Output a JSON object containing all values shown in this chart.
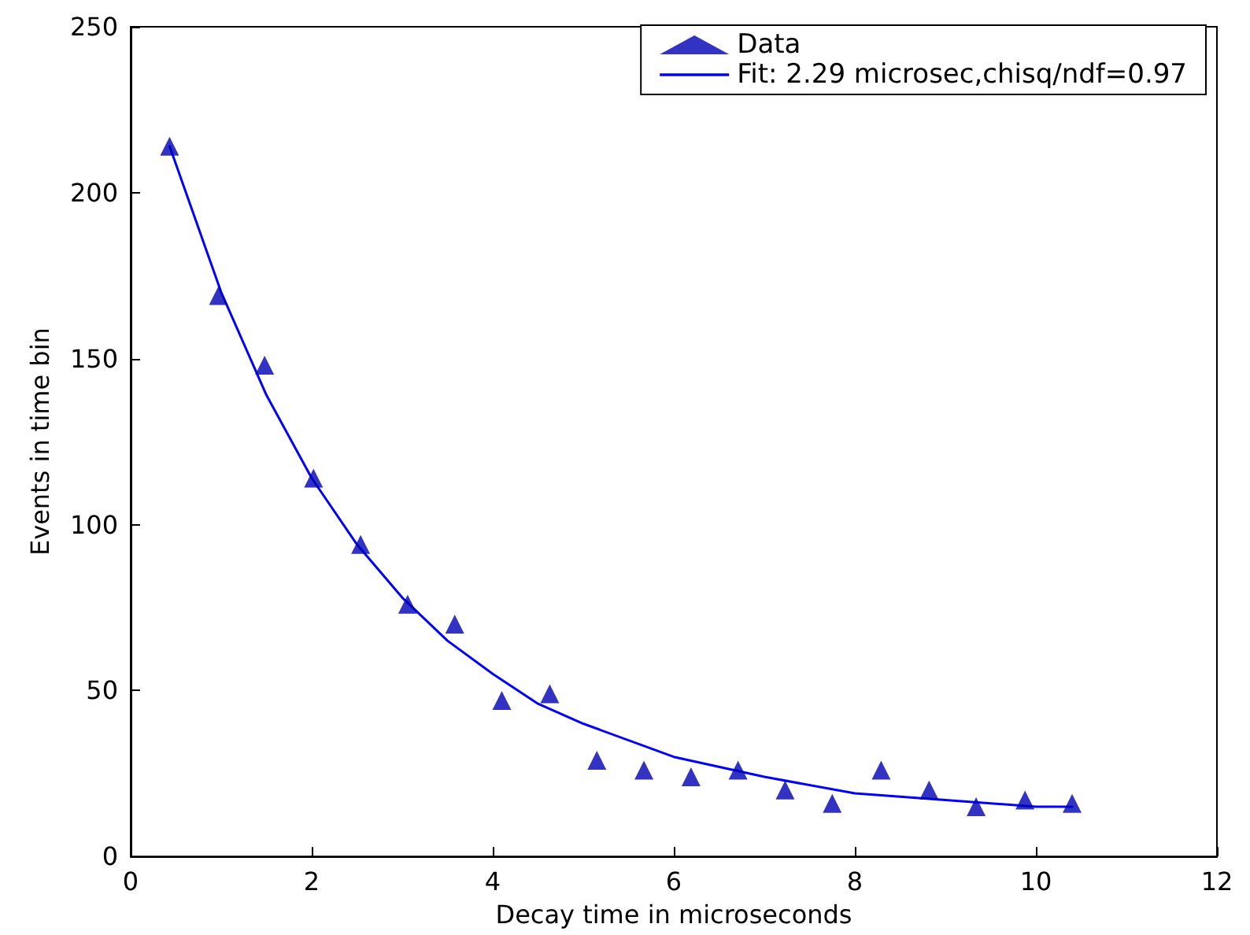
{
  "chart_data": {
    "type": "scatter",
    "xlabel": "Decay time in microseconds",
    "ylabel": "Events in time bin",
    "xlim": [
      0,
      12
    ],
    "xticks": [
      0,
      2,
      4,
      6,
      8,
      10,
      12
    ],
    "ylim": [
      0,
      250
    ],
    "yticks": [
      0,
      50,
      100,
      150,
      200,
      250
    ],
    "grid": false,
    "legend": "top right",
    "series": [
      {
        "name": "Data",
        "marker": "triangle",
        "color": "#0000b4",
        "x": [
          0.43,
          0.97,
          1.48,
          2.02,
          2.54,
          3.06,
          3.58,
          4.1,
          4.63,
          5.15,
          5.67,
          6.19,
          6.71,
          7.23,
          7.75,
          8.29,
          8.82,
          9.34,
          9.88,
          10.4
        ],
        "values": [
          214,
          169,
          148,
          114,
          94,
          76,
          70,
          47,
          49,
          29,
          26,
          24,
          26,
          20,
          16,
          26,
          20,
          15,
          17,
          16
        ]
      },
      {
        "name": "Fit: 2.29 microsec,chisq/ndf=0.97",
        "type": "line",
        "marker": "none",
        "color": "#0000ff",
        "x": [
          0.43,
          1,
          1.5,
          2,
          2.5,
          3,
          3.5,
          4,
          4.5,
          5,
          6,
          7,
          8,
          9,
          10,
          10.4
        ],
        "values": [
          214,
          170,
          139,
          114,
          94,
          78,
          65,
          55,
          46,
          40,
          30,
          24,
          19,
          17,
          15,
          15
        ]
      }
    ]
  }
}
